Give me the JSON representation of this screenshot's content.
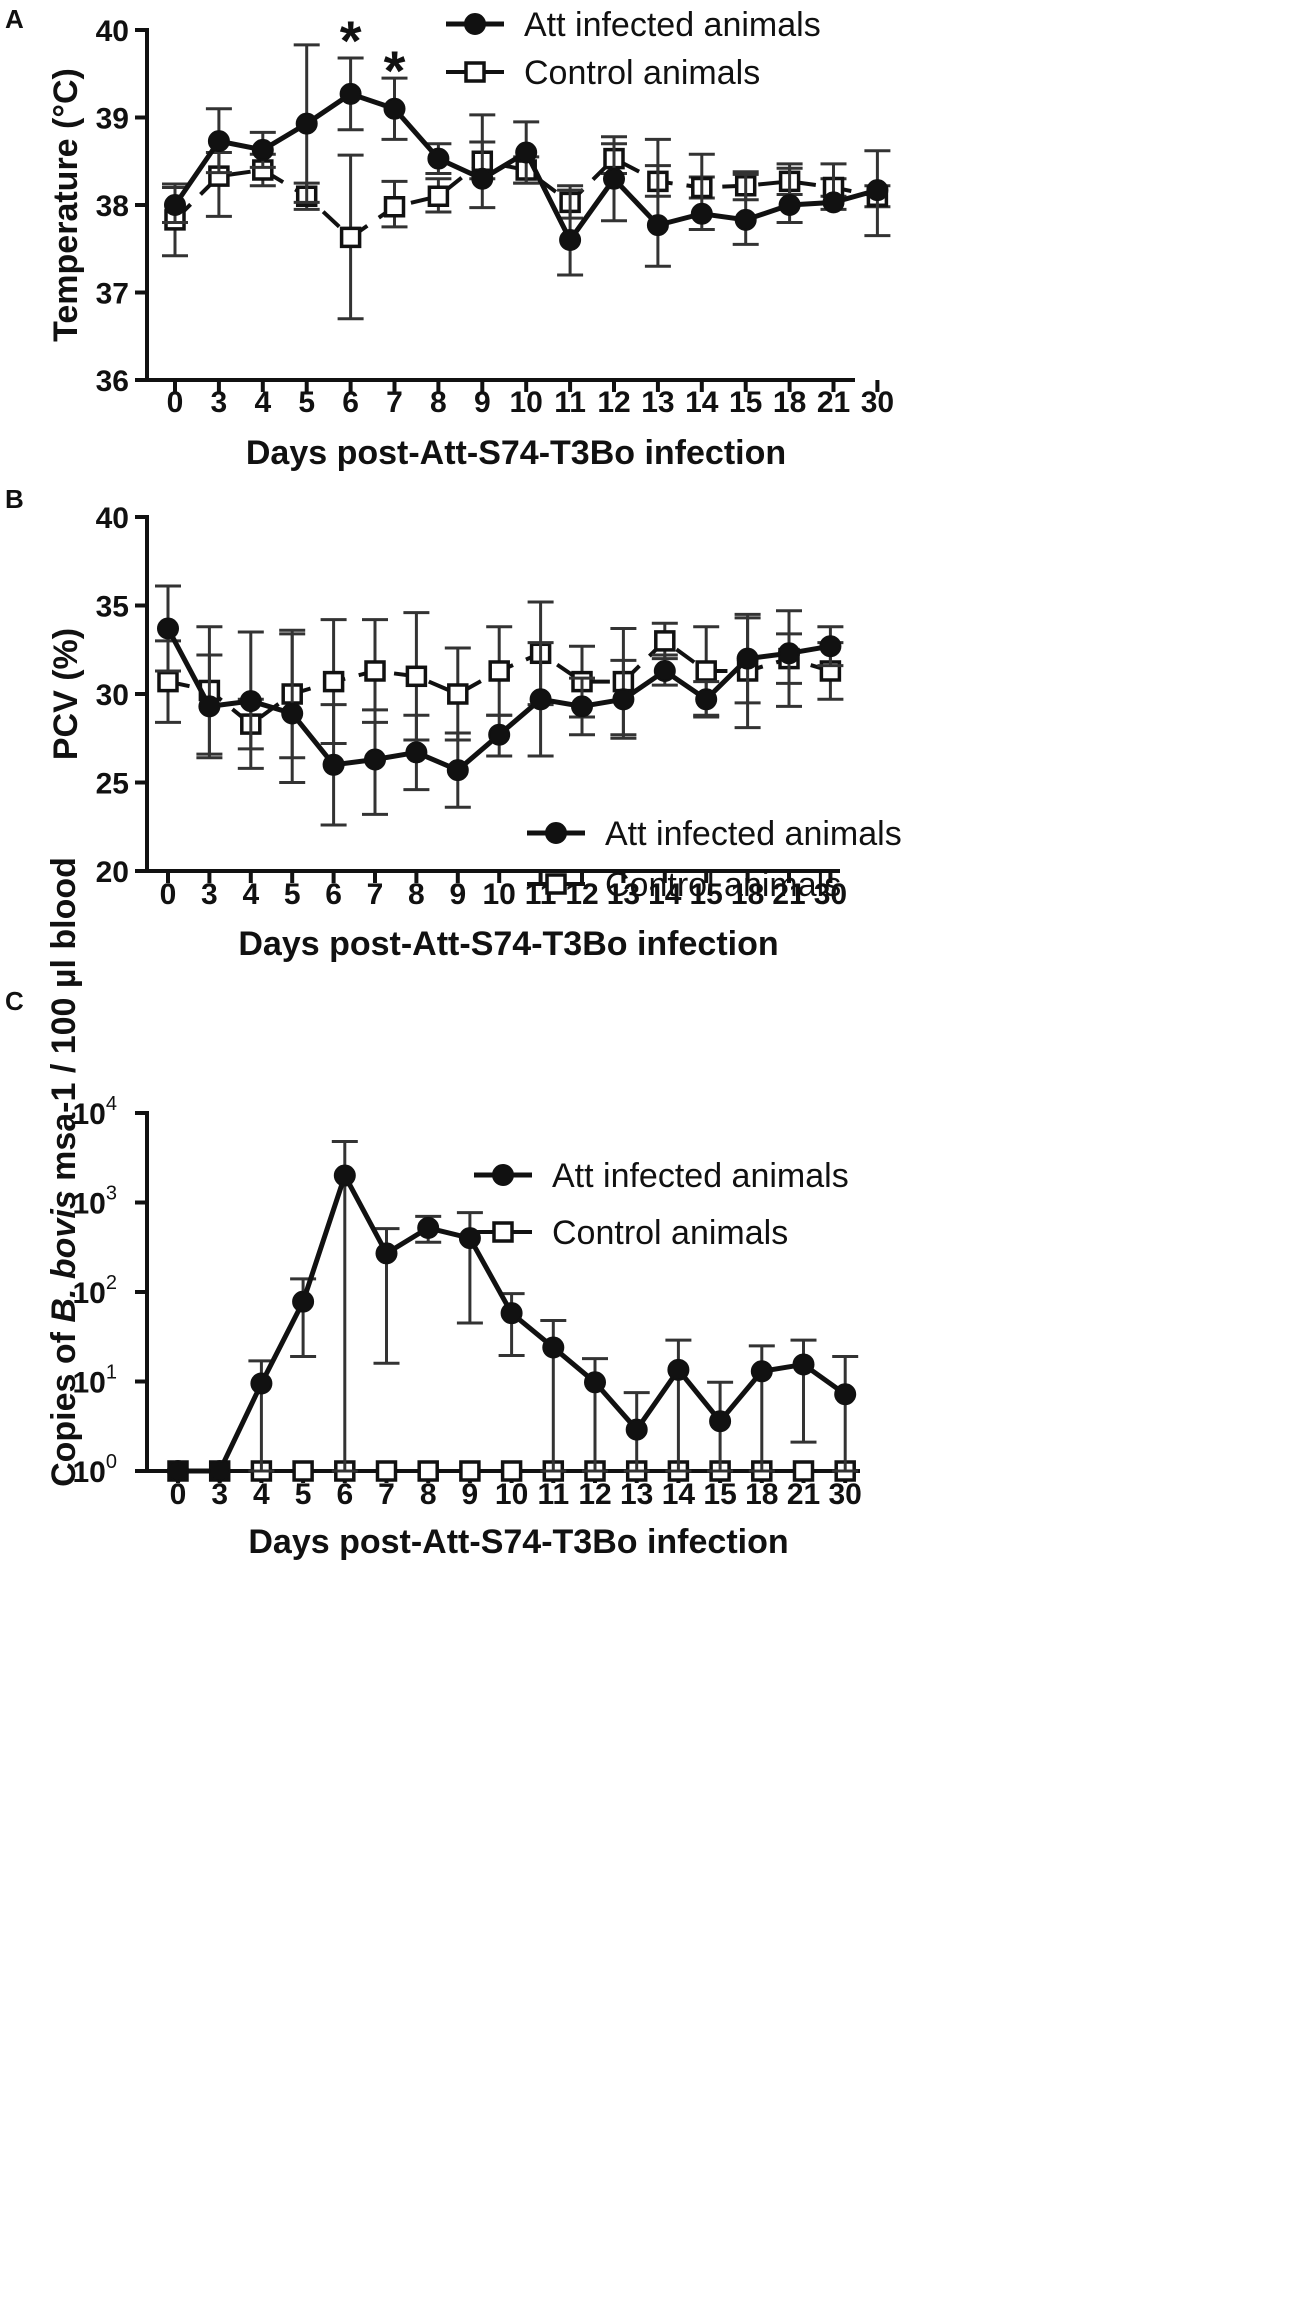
{
  "chart_data": [
    {
      "type": "line",
      "panel": "A",
      "xlabel": "Days post-Att-S74-T3Bo infection",
      "ylabel": "Temperature (°C)",
      "ylim": [
        36,
        40
      ],
      "yscale": "linear",
      "yticks": [
        "36",
        "37",
        "38",
        "39",
        "40"
      ],
      "categories": [
        "0",
        "3",
        "4",
        "5",
        "6",
        "7",
        "8",
        "9",
        "10",
        "11",
        "12",
        "13",
        "14",
        "15",
        "18",
        "21",
        "30"
      ],
      "legend": [
        "Att infected animals",
        "Control animals"
      ],
      "legend_position": "top-right",
      "annotations": [
        {
          "text": "*",
          "category": "6"
        },
        {
          "text": "*",
          "category": "7"
        }
      ],
      "series": [
        {
          "name": "Att infected animals",
          "marker": "filled-circle",
          "line": "solid",
          "values": [
            38.0,
            38.73,
            38.63,
            38.93,
            39.27,
            39.1,
            38.53,
            38.3,
            38.6,
            37.6,
            38.3,
            37.77,
            37.9,
            37.83,
            38.0,
            38.03,
            38.17
          ],
          "err_high": [
            38.2,
            39.1,
            38.83,
            39.83,
            39.68,
            39.45,
            38.7,
            39.03,
            38.95,
            38.17,
            38.78,
            38.75,
            38.58,
            38.35,
            38.47,
            38.47,
            38.62
          ],
          "err_low": [
            37.8,
            38.37,
            38.43,
            38.03,
            38.86,
            38.75,
            38.36,
            37.97,
            38.25,
            37.2,
            37.82,
            37.3,
            37.72,
            37.55,
            37.8,
            37.95,
            37.65
          ]
        },
        {
          "name": "Control animals",
          "marker": "open-square",
          "line": "dashed",
          "values": [
            37.83,
            38.33,
            38.4,
            38.1,
            37.63,
            37.98,
            38.1,
            38.5,
            38.4,
            38.03,
            38.53,
            38.27,
            38.2,
            38.22,
            38.27,
            38.2,
            38.1
          ],
          "err_high": [
            38.24,
            38.6,
            38.58,
            38.25,
            38.57,
            38.27,
            38.3,
            38.72,
            38.55,
            38.22,
            38.7,
            38.45,
            38.32,
            38.38,
            38.42,
            38.3,
            38.22
          ],
          "err_low": [
            37.42,
            37.87,
            38.22,
            37.95,
            36.7,
            37.75,
            37.92,
            38.3,
            38.25,
            37.85,
            38.36,
            38.1,
            38.08,
            38.06,
            38.12,
            38.1,
            37.98
          ]
        }
      ]
    },
    {
      "type": "line",
      "panel": "B",
      "xlabel": "Days post-Att-S74-T3Bo infection",
      "ylabel": "PCV (%)",
      "ylim": [
        20,
        40
      ],
      "yscale": "linear",
      "yticks": [
        "20",
        "25",
        "30",
        "35",
        "40"
      ],
      "categories": [
        "0",
        "3",
        "4",
        "5",
        "6",
        "7",
        "8",
        "9",
        "10",
        "11",
        "12",
        "13",
        "14",
        "15",
        "18",
        "21",
        "30"
      ],
      "legend": [
        "Att infected animals",
        "Control animals"
      ],
      "legend_position": "bottom-right",
      "series": [
        {
          "name": "Att infected animals",
          "marker": "filled-circle",
          "line": "solid",
          "values": [
            33.7,
            29.3,
            29.6,
            28.9,
            26.0,
            26.3,
            26.7,
            25.7,
            27.7,
            29.7,
            29.3,
            29.7,
            31.3,
            29.7,
            32.0,
            32.3,
            32.7
          ],
          "err_high": [
            36.1,
            32.2,
            33.5,
            33.4,
            29.4,
            29.1,
            28.8,
            27.8,
            28.8,
            32.9,
            30.9,
            31.9,
            32.2,
            30.7,
            34.5,
            34.7,
            33.8
          ],
          "err_low": [
            31.3,
            26.4,
            25.8,
            25.0,
            22.6,
            23.2,
            24.6,
            23.6,
            26.5,
            26.5,
            27.7,
            27.5,
            30.5,
            28.7,
            29.5,
            29.3,
            31.6
          ]
        },
        {
          "name": "Control animals",
          "marker": "open-square",
          "line": "dashed",
          "values": [
            30.7,
            30.2,
            28.3,
            30.0,
            30.7,
            31.3,
            31.0,
            30.0,
            31.3,
            32.3,
            30.7,
            30.7,
            33.0,
            31.3,
            31.3,
            32.0,
            31.3
          ],
          "err_high": [
            33.0,
            33.8,
            29.7,
            33.6,
            34.2,
            34.2,
            34.6,
            32.6,
            33.8,
            35.2,
            32.7,
            33.7,
            34.0,
            33.8,
            34.3,
            33.4,
            32.9
          ],
          "err_low": [
            28.4,
            26.6,
            26.9,
            26.4,
            27.2,
            28.4,
            27.4,
            27.4,
            28.8,
            29.4,
            28.7,
            27.7,
            32.0,
            28.8,
            28.1,
            30.6,
            29.7
          ]
        }
      ]
    },
    {
      "type": "line",
      "panel": "C",
      "xlabel": "Days post-Att-S74-T3Bo infection",
      "ylabel": "Copies of B. bovis msa-1 / 100 µl blood",
      "ylabel_parts": {
        "pre": "Copies of ",
        "italic": "B. bovis",
        "post": " msa-1 / 100 µl blood"
      },
      "ylim": [
        1,
        10000
      ],
      "yscale": "log",
      "yticks": [
        {
          "base": "10",
          "exp": "0"
        },
        {
          "base": "10",
          "exp": "1"
        },
        {
          "base": "10",
          "exp": "2"
        },
        {
          "base": "10",
          "exp": "3"
        },
        {
          "base": "10",
          "exp": "4"
        }
      ],
      "categories": [
        "0",
        "3",
        "4",
        "5",
        "6",
        "7",
        "8",
        "9",
        "10",
        "11",
        "12",
        "13",
        "14",
        "15",
        "18",
        "21",
        "30"
      ],
      "legend": [
        "Att infected animals",
        "Control animals"
      ],
      "legend_position": "top-right",
      "series": [
        {
          "name": "Att infected animals",
          "marker": "filled-circle",
          "line": "solid",
          "values": [
            1,
            1,
            9.5,
            78,
            2000,
            270,
            520,
            400,
            58,
            24,
            9.8,
            2.9,
            13.5,
            3.6,
            13,
            15.5,
            7.2
          ],
          "err_high": [
            1,
            1,
            17,
            140,
            4800,
            510,
            700,
            770,
            96,
            48,
            18,
            7.5,
            29,
            9.8,
            25,
            29,
            19
          ],
          "err_low": [
            1,
            1,
            1,
            19,
            1,
            16,
            360,
            45,
            19.5,
            1,
            1,
            1,
            1,
            1,
            1,
            2.1,
            1
          ]
        },
        {
          "name": "Control animals",
          "marker": "open-square",
          "line": "dashed",
          "values": [
            1,
            1,
            1,
            1,
            1,
            1,
            1,
            1,
            1,
            1,
            1,
            1,
            1,
            1,
            1,
            1,
            1
          ],
          "err_high": [
            1,
            1,
            1,
            1,
            1,
            1,
            1,
            1,
            1,
            1,
            1,
            1,
            1,
            1,
            1,
            1,
            1
          ],
          "err_low": [
            1,
            1,
            1,
            1,
            1,
            1,
            1,
            1,
            1,
            1,
            1,
            1,
            1,
            1,
            1,
            1,
            1
          ]
        }
      ]
    }
  ]
}
